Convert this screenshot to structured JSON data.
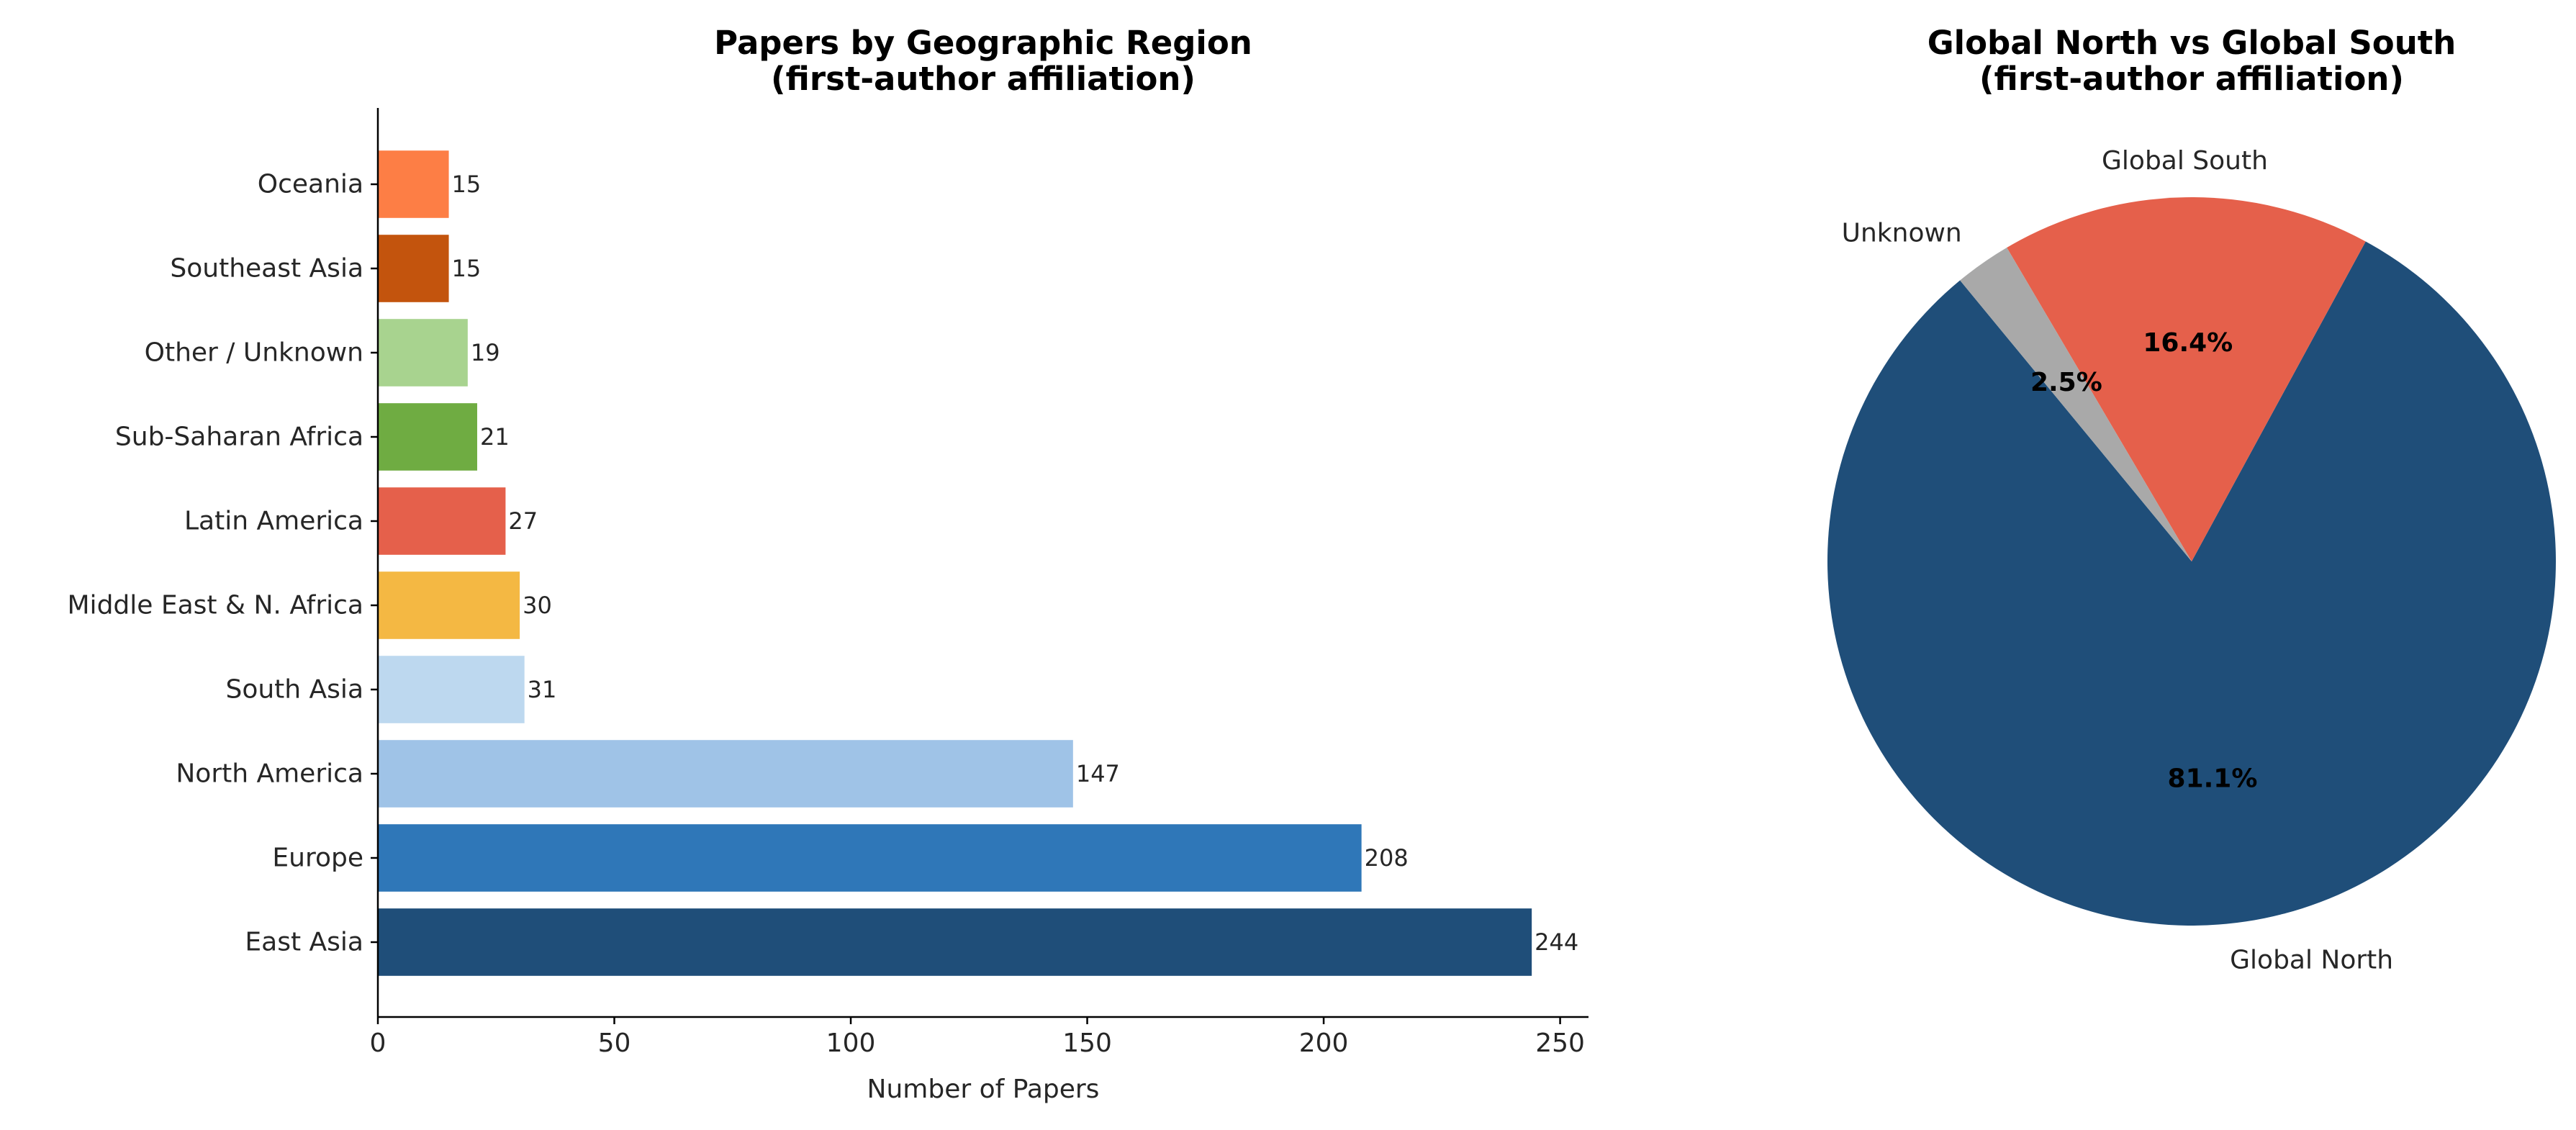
{
  "chart_data": [
    {
      "type": "bar",
      "orientation": "horizontal",
      "title_line1": "Papers by Geographic Region",
      "title_line2": "(first-author affiliation)",
      "xlabel": "Number of Papers",
      "ylabel": "",
      "xlim": [
        0,
        256
      ],
      "xticks": [
        0,
        50,
        100,
        150,
        200,
        250
      ],
      "categories": [
        "Oceania",
        "Southeast Asia",
        "Other / Unknown",
        "Sub-Saharan Africa",
        "Latin America",
        "Middle East & N. Africa",
        "South Asia",
        "North America",
        "Europe",
        "East Asia"
      ],
      "values": [
        15,
        15,
        19,
        21,
        27,
        30,
        31,
        147,
        208,
        244
      ],
      "colors": [
        "#fd7e45",
        "#c3540d",
        "#a8d38f",
        "#6fac42",
        "#e5604b",
        "#f4b843",
        "#bdd8ef",
        "#9fc3e7",
        "#2f77b8",
        "#1f4e79"
      ],
      "grid": false
    },
    {
      "type": "pie",
      "title_line1": "Global North vs Global South",
      "title_line2": "(first-author affiliation)",
      "slices": [
        {
          "label": "Global North",
          "percent": 81.1,
          "pct_label": "81.1%",
          "color": "#1f4e79"
        },
        {
          "label": "Global South",
          "percent": 16.4,
          "pct_label": "16.4%",
          "color": "#e5604b"
        },
        {
          "label": "Unknown",
          "percent": 2.5,
          "pct_label": "2.5%",
          "color": "#a9a9a9"
        }
      ]
    }
  ]
}
